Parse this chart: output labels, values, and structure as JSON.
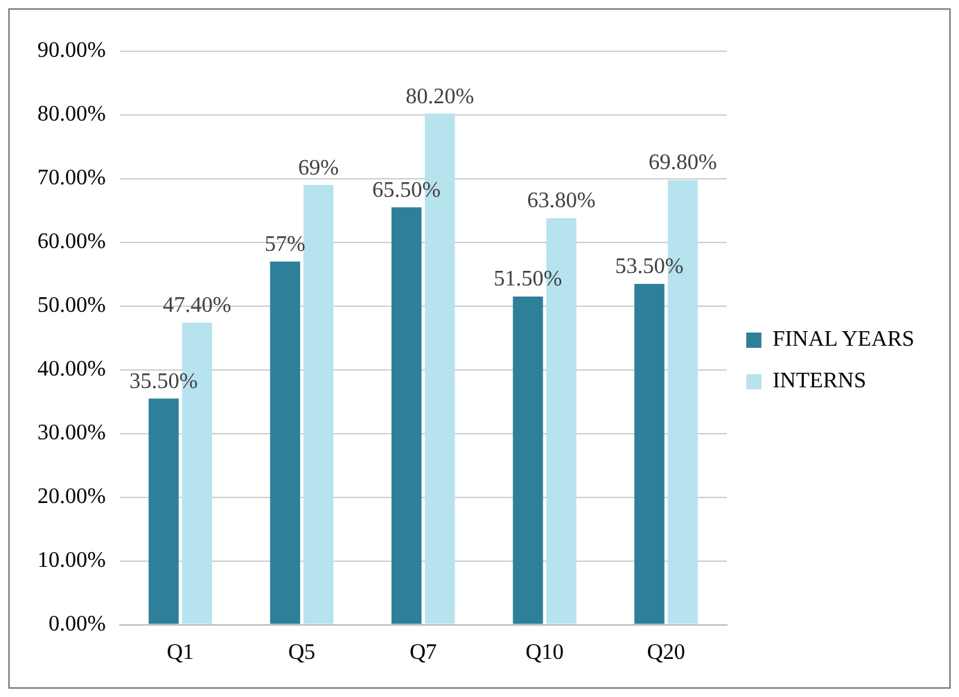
{
  "chart_data": {
    "type": "bar",
    "categories": [
      "Q1",
      "Q5",
      "Q7",
      "Q10",
      "Q20"
    ],
    "series": [
      {
        "name": "FINAL YEARS",
        "color": "#2e7f9a",
        "values": [
          35.5,
          57,
          65.5,
          51.5,
          53.5
        ],
        "value_labels": [
          "35.50%",
          "57%",
          "65.50%",
          "51.50%",
          "53.50%"
        ]
      },
      {
        "name": "INTERNS",
        "color": "#b7e3ef",
        "values": [
          47.4,
          69,
          80.2,
          63.8,
          69.8
        ],
        "value_labels": [
          "47.40%",
          "69%",
          "80.20%",
          "63.80%",
          "69.80%"
        ]
      }
    ],
    "ylim": [
      0,
      90
    ],
    "yticks": [
      {
        "value": 0,
        "label": "0.00%"
      },
      {
        "value": 10,
        "label": "10.00%"
      },
      {
        "value": 20,
        "label": "20.00%"
      },
      {
        "value": 30,
        "label": "30.00%"
      },
      {
        "value": 40,
        "label": "40.00%"
      },
      {
        "value": 50,
        "label": "50.00%"
      },
      {
        "value": 60,
        "label": "60.00%"
      },
      {
        "value": 70,
        "label": "70.00%"
      },
      {
        "value": 80,
        "label": "80.00%"
      },
      {
        "value": 90,
        "label": "90.00%"
      }
    ],
    "grid": "y",
    "legend": "right"
  }
}
